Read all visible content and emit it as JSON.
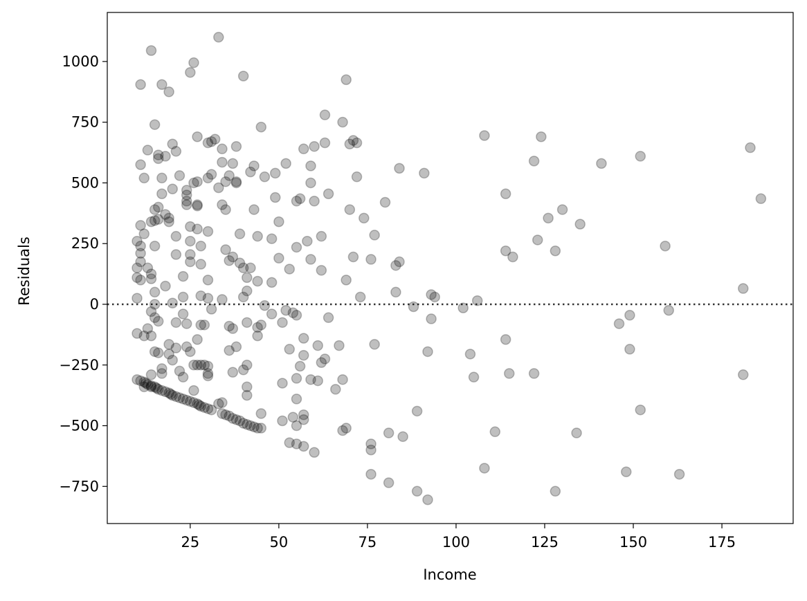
{
  "chart_data": {
    "type": "scatter",
    "xlabel": "Income",
    "ylabel": "Residuals",
    "xlim": [
      1.6,
      195.1
    ],
    "ylim": [
      -903,
      1202
    ],
    "xticks": [
      25,
      50,
      75,
      100,
      125,
      150,
      175
    ],
    "yticks": [
      {
        "value": -750,
        "label": "−750"
      },
      {
        "value": -500,
        "label": "−500"
      },
      {
        "value": -250,
        "label": "−250"
      },
      0,
      250,
      500,
      750,
      1000
    ],
    "hline": 0,
    "series": [
      {
        "color": "#000000",
        "alpha": 0.25,
        "x": [
          11,
          14,
          17,
          19,
          25,
          26,
          33,
          40,
          69,
          15,
          45,
          63,
          68,
          108,
          124,
          183,
          152,
          141,
          122,
          91,
          84,
          186,
          114,
          130,
          126,
          135,
          159,
          123,
          128,
          114,
          116,
          181,
          106,
          102,
          88,
          93,
          94,
          83,
          149,
          146,
          160,
          93,
          104,
          92,
          105,
          114,
          115,
          122,
          149,
          181,
          152,
          111,
          134,
          148,
          163,
          128,
          108,
          89,
          92,
          89,
          85,
          81,
          81,
          76,
          76,
          76,
          52,
          55,
          56,
          57,
          59,
          59,
          60,
          60,
          63,
          64,
          62,
          62,
          59,
          58,
          55,
          53,
          50,
          50,
          49,
          48,
          46,
          49,
          70,
          71,
          72,
          72,
          70,
          74,
          71,
          76,
          77,
          80,
          84,
          83,
          73,
          69,
          77,
          67,
          63,
          62,
          61,
          57,
          57,
          59,
          61,
          56,
          55,
          53,
          51,
          51,
          54,
          55,
          52,
          64,
          66,
          68,
          68,
          69,
          57,
          57,
          54,
          53,
          55,
          55,
          51,
          55,
          57,
          60,
          11,
          10,
          11,
          11,
          10,
          10,
          11,
          10,
          12,
          11,
          12,
          11,
          13,
          13,
          14,
          14,
          15,
          15,
          14,
          16,
          16,
          17,
          17,
          15,
          16,
          15,
          16,
          15,
          18,
          19,
          19,
          18,
          20,
          20,
          21,
          21,
          22,
          21,
          18,
          20,
          16,
          14,
          15,
          13,
          14,
          15,
          16,
          17,
          17,
          19,
          19,
          20,
          21,
          21,
          22,
          23,
          23,
          24,
          23,
          23,
          24,
          25,
          24,
          24,
          24,
          24,
          25,
          25,
          25,
          25,
          27,
          26,
          27,
          27,
          27,
          27,
          28,
          28,
          28,
          28,
          27,
          29,
          30,
          30,
          30,
          29,
          30,
          31,
          30,
          30,
          30,
          31,
          30,
          31,
          32,
          33,
          34,
          34,
          34,
          35,
          35,
          36,
          35,
          36,
          37,
          37,
          38,
          38,
          38,
          39,
          39,
          40,
          38,
          40,
          37,
          36,
          37,
          36,
          41,
          41,
          41,
          41,
          40,
          41,
          41,
          42,
          43,
          43,
          44,
          44,
          44,
          44,
          45,
          46,
          48,
          48,
          45,
          42,
          34,
          10,
          11,
          12,
          12.5,
          13,
          14,
          15,
          15.5,
          16,
          17,
          18,
          19,
          19.5,
          20,
          21,
          22,
          23,
          24,
          25,
          26,
          27,
          27.5,
          28,
          29,
          30,
          31,
          33,
          34,
          34,
          35,
          36,
          37,
          38,
          39,
          40,
          41,
          42,
          43,
          44,
          45,
          12,
          14,
          26,
          27,
          28,
          26,
          14,
          10,
          12
        ],
        "values": [
          905,
          1045,
          905,
          875,
          955,
          995,
          1100,
          940,
          925,
          740,
          730,
          780,
          750,
          695,
          690,
          645,
          610,
          580,
          590,
          540,
          560,
          435,
          455,
          390,
          355,
          330,
          240,
          265,
          220,
          220,
          195,
          65,
          15,
          -15,
          -10,
          40,
          30,
          50,
          -45,
          -80,
          -25,
          -60,
          -205,
          -195,
          -300,
          -145,
          -285,
          -285,
          -185,
          -290,
          -435,
          -525,
          -530,
          -690,
          -700,
          -770,
          -675,
          -770,
          -805,
          -440,
          -545,
          -530,
          -735,
          -700,
          -575,
          -600,
          580,
          425,
          435,
          640,
          500,
          570,
          650,
          425,
          665,
          455,
          280,
          140,
          185,
          260,
          235,
          145,
          340,
          190,
          440,
          270,
          525,
          540,
          660,
          675,
          665,
          525,
          390,
          355,
          195,
          185,
          285,
          420,
          175,
          160,
          30,
          100,
          -165,
          -170,
          -225,
          -240,
          -170,
          -140,
          -210,
          -310,
          -315,
          -255,
          -305,
          -185,
          -325,
          -75,
          -35,
          -45,
          -25,
          -55,
          -350,
          -310,
          -520,
          -510,
          -455,
          -475,
          -465,
          -570,
          -575,
          -500,
          -480,
          -390,
          -585,
          -610,
          325,
          260,
          240,
          175,
          150,
          110,
          100,
          25,
          290,
          210,
          520,
          575,
          635,
          150,
          340,
          105,
          50,
          0,
          125,
          600,
          615,
          520,
          455,
          390,
          400,
          345,
          350,
          240,
          370,
          355,
          340,
          610,
          475,
          660,
          630,
          280,
          530,
          205,
          75,
          5,
          -70,
          -30,
          -55,
          -100,
          -130,
          -195,
          -200,
          -285,
          -265,
          -165,
          -205,
          -230,
          -180,
          -75,
          -275,
          -300,
          -40,
          -80,
          115,
          30,
          -175,
          -195,
          470,
          450,
          425,
          410,
          320,
          260,
          205,
          175,
          690,
          500,
          505,
          410,
          405,
          310,
          240,
          165,
          35,
          -85,
          -145,
          -250,
          -285,
          -295,
          -255,
          -85,
          25,
          -20,
          100,
          300,
          665,
          670,
          520,
          535,
          680,
          480,
          640,
          585,
          410,
          390,
          505,
          530,
          225,
          180,
          195,
          580,
          505,
          500,
          650,
          290,
          170,
          150,
          -175,
          -270,
          -280,
          -90,
          -100,
          -190,
          -250,
          -75,
          -340,
          -375,
          30,
          55,
          110,
          545,
          570,
          390,
          280,
          95,
          -95,
          -130,
          -85,
          -5,
          90,
          -40,
          -450,
          150,
          20,
          -310,
          -315,
          -320,
          -325,
          -330,
          -335,
          -340,
          -345,
          -350,
          -355,
          -360,
          -365,
          -370,
          -375,
          -380,
          -385,
          -390,
          -395,
          -400,
          -405,
          -410,
          -415,
          -420,
          -425,
          -430,
          -435,
          -410,
          -405,
          -450,
          -455,
          -460,
          -470,
          -475,
          -480,
          -490,
          -495,
          -500,
          -505,
          -510,
          -510,
          -340,
          -340,
          -250,
          -250,
          -250,
          -355,
          -290,
          -120,
          -130
        ]
      }
    ]
  }
}
